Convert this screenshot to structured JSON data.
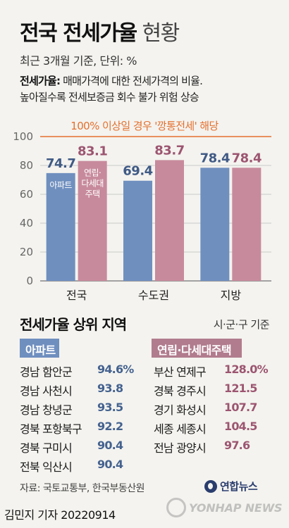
{
  "title": {
    "main": "전국 전세가율",
    "light": "현황"
  },
  "subtitle": "최근 3개월 기준, 단위: %",
  "description": {
    "term": "전세가율:",
    "line1": "매매가격에 대한 전세가격의 비율.",
    "line2": "높아질수록 전세보증금 회수 불가 위험 상승"
  },
  "annotation": "100% 이상일 경우 '깡통전세' 해당",
  "chart_data": {
    "type": "bar",
    "categories": [
      "전국",
      "수도권",
      "지방"
    ],
    "series": [
      {
        "name": "아파트",
        "values": [
          74.7,
          69.4,
          78.4
        ],
        "color": "#6f8fbf",
        "label_color": "#3f5a85"
      },
      {
        "name": "연립·다세대주택",
        "values": [
          83.1,
          83.7,
          78.4
        ],
        "color": "#c78a9c",
        "label_color": "#9c5570"
      }
    ],
    "ylim": [
      0,
      100
    ],
    "yticks": [
      "0",
      "20",
      "40",
      "60",
      "80",
      "100"
    ],
    "reference_line": {
      "y": 100,
      "color": "#e4702e"
    },
    "inline_legend": {
      "series_0": "아파트",
      "series_1": [
        "연립·",
        "다세대",
        "주택"
      ]
    }
  },
  "ranking": {
    "title": "전세가율 상위 지역",
    "note": "시·군·구 기준",
    "apartment": {
      "label": "아파트",
      "items": [
        {
          "name": "경남 함안군",
          "value": "94.6%"
        },
        {
          "name": "경남 사천시",
          "value": "93.8"
        },
        {
          "name": "경남 창녕군",
          "value": "93.5"
        },
        {
          "name": "경북 포항북구",
          "value": "92.2"
        },
        {
          "name": "경북 구미시",
          "value": "90.4"
        },
        {
          "name": "전북 익산시",
          "value": "90.4"
        }
      ]
    },
    "villa": {
      "label": "연립·다세대주택",
      "items": [
        {
          "name": "부산 연제구",
          "value": "128.0%"
        },
        {
          "name": "경북 경주시",
          "value": "121.5"
        },
        {
          "name": "경기 화성시",
          "value": "107.7"
        },
        {
          "name": "세종 세종시",
          "value": "104.5"
        },
        {
          "name": "전남 광양시",
          "value": "97.6"
        }
      ]
    }
  },
  "source": "자료: 국토교통부, 한국부동산원",
  "logo": "연합뉴스",
  "byline": "김민지 기자  20220914",
  "watermark": "YONHAP NEWS"
}
